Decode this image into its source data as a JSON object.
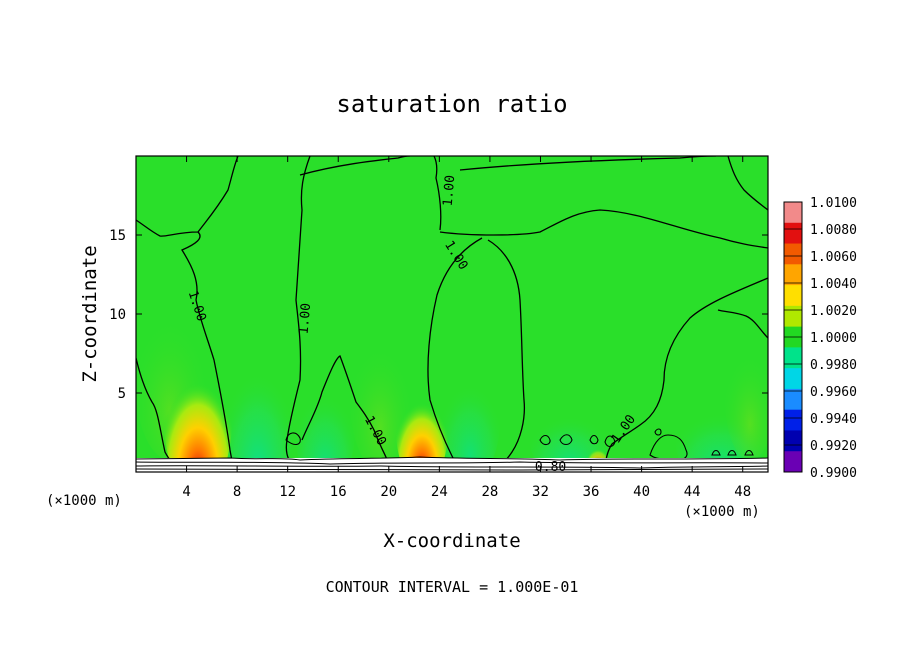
{
  "chart_data": {
    "type": "heatmap",
    "title": "saturation ratio",
    "xlabel": "X-coordinate",
    "ylabel": "Z-coordinate",
    "x_unit_left": "(×1000 m)",
    "x_unit_right": "(×1000 m)",
    "footer": "CONTOUR INTERVAL = 1.000E-01",
    "xlim": [
      0,
      50
    ],
    "ylim": [
      0,
      20
    ],
    "x_ticks": [
      4,
      8,
      12,
      16,
      20,
      24,
      28,
      32,
      36,
      40,
      44,
      48
    ],
    "x_tick_labels": [
      "4",
      "8",
      "12",
      "16",
      "20",
      "24",
      "28",
      "32",
      "36",
      "40",
      "44",
      "48"
    ],
    "y_ticks": [
      5,
      10,
      15
    ],
    "y_tick_labels": [
      "5",
      "10",
      "15"
    ],
    "colorbar": {
      "labels": [
        "1.0100",
        "1.0080",
        "1.0060",
        "1.0040",
        "1.0020",
        "1.0000",
        "0.9980",
        "0.9960",
        "0.9940",
        "0.9920",
        "0.9900"
      ],
      "colors": [
        "#f28a8a",
        "#e21010",
        "#f25a00",
        "#ffa500",
        "#ffdf00",
        "#b0e800",
        "#22d822",
        "#00e38a",
        "#00d6e6",
        "#1a8cff",
        "#0020e8",
        "#0000b0",
        "#6a00b4"
      ]
    },
    "background_color": "#2adf2a",
    "contour_labels": [
      {
        "text": "1.00",
        "x": 4.8,
        "z": 10.5,
        "angle": 72
      },
      {
        "text": "1.00",
        "x": 13.4,
        "z": 9.7,
        "angle": -85
      },
      {
        "text": "1.00",
        "x": 18.9,
        "z": 2.6,
        "angle": 62
      },
      {
        "text": "1.00",
        "x": 25.3,
        "z": 13.7,
        "angle": 58
      },
      {
        "text": "1.00",
        "x": 24.8,
        "z": 17.8,
        "angle": -85
      },
      {
        "text": "1.00",
        "x": 38.6,
        "z": 2.7,
        "angle": -55
      },
      {
        "text": "0.80",
        "x": 32.8,
        "z": 0.3,
        "angle": 0
      }
    ],
    "hotspots": [
      {
        "x": 4.8,
        "z": 1.5,
        "peak": 1.008
      },
      {
        "x": 22.6,
        "z": 1.5,
        "peak": 1.007
      },
      {
        "x": 36.5,
        "z": 0.5,
        "peak": 1.004
      }
    ]
  }
}
